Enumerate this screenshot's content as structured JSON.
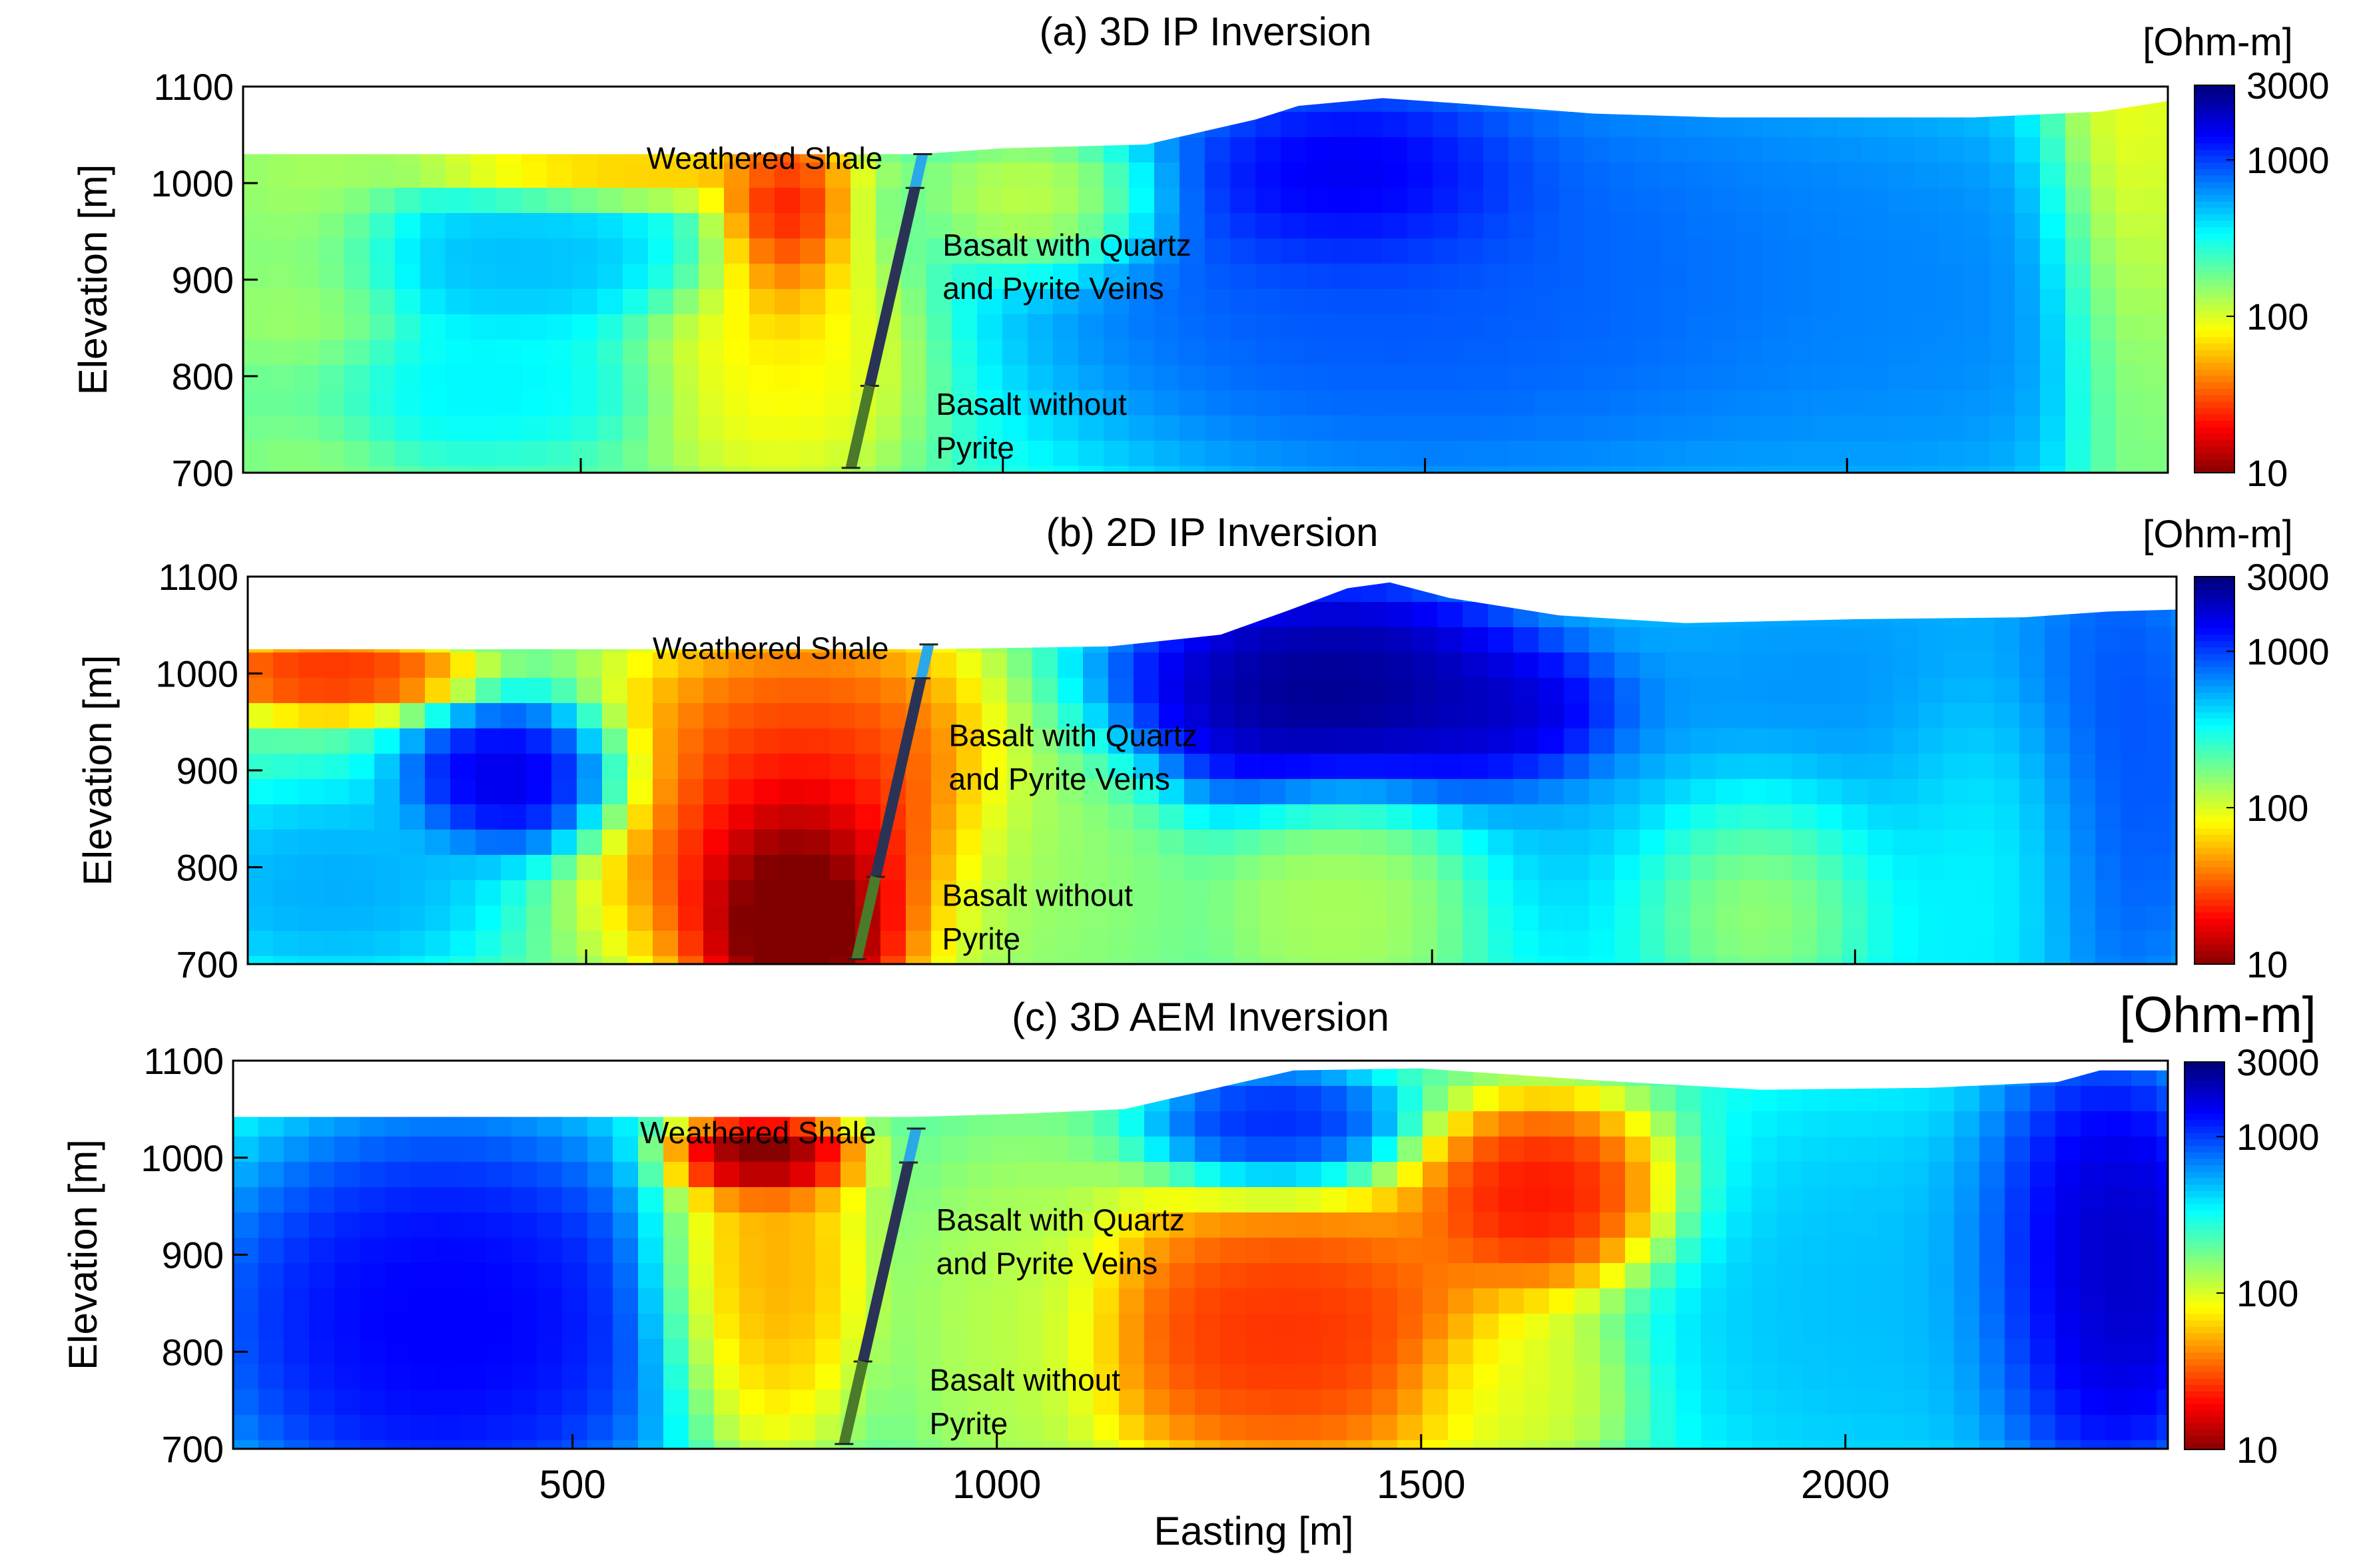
{
  "figure": {
    "easting_label": "Easting [m]",
    "x_ticks": [
      "500",
      "1000",
      "1500",
      "2000"
    ],
    "x_tick_values": [
      500,
      1000,
      1500,
      2000
    ],
    "xlim": [
      100,
      2380
    ]
  },
  "chart_data": [
    {
      "type": "heatmap",
      "title": "(a) 3D IP Inversion",
      "ylabel": "Elevation [m]",
      "y_ticks": [
        "1100",
        "1000",
        "900",
        "800",
        "700"
      ],
      "y_tick_values": [
        1100,
        1000,
        900,
        800,
        700
      ],
      "ylim": [
        700,
        1100
      ],
      "colorbar_unit": "[Ohm-m]",
      "colorbar_ticks": [
        "3000",
        "1000",
        "100",
        "10"
      ],
      "colorbar_tick_values": [
        3000,
        1000,
        100,
        10
      ],
      "annotations": [
        "Weathered Shale",
        "Basalt with Quartz",
        "and Pyrite Veins",
        "Basalt without",
        "Pyrite"
      ],
      "surface": [
        [
          100,
          1030
        ],
        [
          400,
          1030
        ],
        [
          900,
          1030
        ],
        [
          1000,
          1036
        ],
        [
          1170,
          1040
        ],
        [
          1300,
          1066
        ],
        [
          1350,
          1080
        ],
        [
          1450,
          1088
        ],
        [
          1550,
          1082
        ],
        [
          1700,
          1072
        ],
        [
          1850,
          1068
        ],
        [
          2000,
          1068
        ],
        [
          2150,
          1068
        ],
        [
          2300,
          1074
        ],
        [
          2380,
          1085
        ]
      ],
      "blobs": [
        {
          "x": 1420,
          "y": 1000,
          "rx": 190,
          "ry": 90,
          "log": 3.5
        },
        {
          "x": 1450,
          "y": 900,
          "rx": 380,
          "ry": 200,
          "log": 3.05
        },
        {
          "x": 1760,
          "y": 900,
          "rx": 560,
          "ry": 230,
          "log": 2.95
        },
        {
          "x": 2100,
          "y": 850,
          "rx": 230,
          "ry": 180,
          "log": 2.85
        },
        {
          "x": 420,
          "y": 920,
          "rx": 250,
          "ry": 70,
          "log": 2.75
        },
        {
          "x": 340,
          "y": 790,
          "rx": 220,
          "ry": 60,
          "log": 2.6
        },
        {
          "x": 740,
          "y": 960,
          "rx": 70,
          "ry": 100,
          "log": 1.1
        },
        {
          "x": 740,
          "y": 830,
          "rx": 150,
          "ry": 140,
          "log": 1.85
        },
        {
          "x": 560,
          "y": 1015,
          "rx": 230,
          "ry": 35,
          "log": 1.7
        },
        {
          "x": 2330,
          "y": 960,
          "rx": 90,
          "ry": 260,
          "log": 1.8
        },
        {
          "x": 180,
          "y": 900,
          "rx": 110,
          "ry": 200,
          "log": 2.1
        },
        {
          "x": 1060,
          "y": 980,
          "rx": 130,
          "ry": 70,
          "log": 1.9
        }
      ]
    },
    {
      "type": "heatmap",
      "title": "(b) 2D IP Inversion",
      "ylabel": "Elevation [m]",
      "y_ticks": [
        "1100",
        "1000",
        "900",
        "800",
        "700"
      ],
      "y_tick_values": [
        1100,
        1000,
        900,
        800,
        700
      ],
      "ylim": [
        700,
        1100
      ],
      "colorbar_unit": "[Ohm-m]",
      "colorbar_ticks": [
        "3000",
        "1000",
        "100",
        "10"
      ],
      "colorbar_tick_values": [
        3000,
        1000,
        100,
        10
      ],
      "annotations": [
        "Weathered Shale",
        "Basalt with Quartz",
        "and Pyrite Veins",
        "Basalt without",
        "Pyrite"
      ],
      "surface": [
        [
          100,
          1025
        ],
        [
          640,
          1025
        ],
        [
          900,
          1025
        ],
        [
          1120,
          1028
        ],
        [
          1250,
          1040
        ],
        [
          1330,
          1065
        ],
        [
          1400,
          1088
        ],
        [
          1450,
          1094
        ],
        [
          1520,
          1078
        ],
        [
          1650,
          1060
        ],
        [
          1800,
          1052
        ],
        [
          2000,
          1056
        ],
        [
          2200,
          1058
        ],
        [
          2300,
          1064
        ],
        [
          2380,
          1066
        ]
      ],
      "blobs": [
        {
          "x": 750,
          "y": 760,
          "rx": 110,
          "ry": 120,
          "log": 0.4
        },
        {
          "x": 760,
          "y": 860,
          "rx": 230,
          "ry": 180,
          "log": 1.3
        },
        {
          "x": 200,
          "y": 1000,
          "rx": 140,
          "ry": 40,
          "log": 1.3
        },
        {
          "x": 420,
          "y": 890,
          "rx": 120,
          "ry": 70,
          "log": 3.4
        },
        {
          "x": 1390,
          "y": 980,
          "rx": 250,
          "ry": 110,
          "log": 3.6
        },
        {
          "x": 1600,
          "y": 960,
          "rx": 120,
          "ry": 60,
          "log": 3.4
        },
        {
          "x": 2000,
          "y": 900,
          "rx": 400,
          "ry": 250,
          "log": 2.9
        },
        {
          "x": 2310,
          "y": 900,
          "rx": 120,
          "ry": 260,
          "log": 3.1
        },
        {
          "x": 1900,
          "y": 780,
          "rx": 150,
          "ry": 120,
          "log": 1.8
        },
        {
          "x": 1400,
          "y": 770,
          "rx": 130,
          "ry": 110,
          "log": 2.1
        },
        {
          "x": 1050,
          "y": 780,
          "rx": 140,
          "ry": 150,
          "log": 2.2
        },
        {
          "x": 2150,
          "y": 830,
          "rx": 140,
          "ry": 160,
          "log": 2.4
        },
        {
          "x": 200,
          "y": 780,
          "rx": 180,
          "ry": 90,
          "log": 2.8
        }
      ]
    },
    {
      "type": "heatmap",
      "title": "(c) 3D AEM Inversion",
      "ylabel": "Elevation [m]",
      "y_ticks": [
        "1100",
        "1000",
        "900",
        "800",
        "700"
      ],
      "y_tick_values": [
        1100,
        1000,
        900,
        800,
        700
      ],
      "ylim": [
        700,
        1100
      ],
      "colorbar_unit": "[Ohm-m]",
      "colorbar_ticks": [
        "3000",
        "1000",
        "100",
        "10"
      ],
      "colorbar_tick_values": [
        3000,
        1000,
        100,
        10
      ],
      "x_ticks": [
        "500",
        "1000",
        "1500",
        "2000"
      ],
      "xlabel": "Easting [m]",
      "annotations": [
        "Weathered Shale",
        "Basalt with Quartz",
        "and Pyrite Veins",
        "Basalt without",
        "Pyrite"
      ],
      "surface": [
        [
          100,
          1042
        ],
        [
          640,
          1042
        ],
        [
          900,
          1042
        ],
        [
          1020,
          1045
        ],
        [
          1150,
          1050
        ],
        [
          1250,
          1070
        ],
        [
          1350,
          1090
        ],
        [
          1500,
          1092
        ],
        [
          1700,
          1080
        ],
        [
          1900,
          1070
        ],
        [
          2100,
          1072
        ],
        [
          2250,
          1078
        ],
        [
          2300,
          1090
        ],
        [
          2380,
          1090
        ]
      ],
      "blobs": [
        {
          "x": 350,
          "y": 830,
          "rx": 270,
          "ry": 200,
          "log": 3.3
        },
        {
          "x": 720,
          "y": 1000,
          "rx": 90,
          "ry": 40,
          "log": 0.5
        },
        {
          "x": 720,
          "y": 880,
          "rx": 110,
          "ry": 170,
          "log": 1.6
        },
        {
          "x": 1340,
          "y": 820,
          "rx": 240,
          "ry": 140,
          "log": 1.3
        },
        {
          "x": 1650,
          "y": 960,
          "rx": 140,
          "ry": 90,
          "log": 1.2
        },
        {
          "x": 1330,
          "y": 1030,
          "rx": 130,
          "ry": 60,
          "log": 3.2
        },
        {
          "x": 2300,
          "y": 880,
          "rx": 150,
          "ry": 210,
          "log": 3.5
        },
        {
          "x": 2030,
          "y": 850,
          "rx": 250,
          "ry": 220,
          "log": 2.75
        },
        {
          "x": 1020,
          "y": 830,
          "rx": 120,
          "ry": 170,
          "log": 2.1
        },
        {
          "x": 1620,
          "y": 760,
          "rx": 120,
          "ry": 80,
          "log": 2.0
        }
      ]
    }
  ],
  "borehole": {
    "segments": [
      {
        "name": "weathered-shale",
        "top": 1030,
        "bottom": 995,
        "color": "#2ba8e8"
      },
      {
        "name": "basalt-quartz-pyrite",
        "top": 995,
        "bottom": 790,
        "color": "#2a3355"
      },
      {
        "name": "basalt-no-pyrite",
        "top": 790,
        "bottom": 705,
        "color": "#4a7a2a"
      }
    ],
    "x_top": 905,
    "x_bottom": 820
  },
  "colormap": [
    "#800000",
    "#ff0000",
    "#ff8000",
    "#ffff00",
    "#80ff80",
    "#00ffff",
    "#0080ff",
    "#0000ff",
    "#000080"
  ]
}
